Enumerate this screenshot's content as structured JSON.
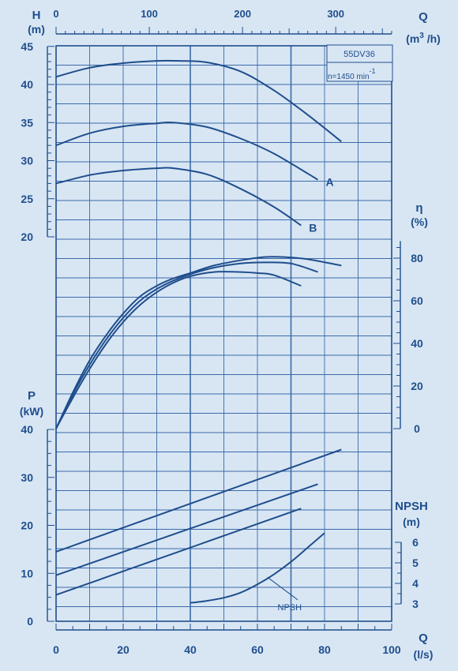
{
  "colors": {
    "background": "#d8e6f4",
    "ink": "#1f4e8c",
    "grid": "#3b6aa8"
  },
  "chart_data": {
    "type": "line",
    "model_label": "55DV36",
    "speed_label": "n=1450 min",
    "speed_exponent": "-1",
    "top_axis": {
      "label": "Q",
      "unit": "(m",
      "unit_sup": "3",
      "unit_tail": " /h)",
      "range": [
        0,
        360
      ],
      "ticks": [
        0,
        100,
        200,
        300
      ]
    },
    "bottom_axis": {
      "label": "Q",
      "unit": "(l/s)",
      "range": [
        0,
        100
      ],
      "ticks": [
        0,
        20,
        40,
        60,
        80,
        100
      ]
    },
    "head_axis": {
      "label": "H",
      "unit": "(m)",
      "range": [
        20,
        45
      ],
      "ticks": [
        20,
        25,
        30,
        35,
        40,
        45
      ]
    },
    "efficiency_axis": {
      "label": "η",
      "unit": "(%)",
      "range": [
        0,
        88
      ],
      "ticks": [
        0,
        20,
        40,
        60,
        80
      ]
    },
    "power_axis": {
      "label": "P",
      "unit": "(kW)",
      "range": [
        0,
        40
      ],
      "ticks": [
        0,
        10,
        20,
        30,
        40
      ]
    },
    "npsh_axis": {
      "label": "NPSH",
      "unit": "(m)",
      "range": [
        3,
        6
      ],
      "ticks": [
        3,
        4,
        5,
        6
      ]
    },
    "head_curves": [
      {
        "name": "",
        "x": [
          0,
          10,
          20,
          30,
          37,
          45,
          55,
          65,
          75,
          85
        ],
        "y": [
          41.0,
          42.2,
          42.8,
          43.1,
          43.1,
          42.9,
          41.7,
          39.2,
          36.0,
          32.5
        ]
      },
      {
        "name": "A",
        "x": [
          0,
          10,
          20,
          30,
          35,
          45,
          55,
          65,
          78
        ],
        "y": [
          32.0,
          33.6,
          34.5,
          34.9,
          35.0,
          34.4,
          32.9,
          30.9,
          27.5
        ]
      },
      {
        "name": "B",
        "x": [
          0,
          10,
          20,
          30,
          35,
          45,
          55,
          65,
          73
        ],
        "y": [
          27.0,
          28.1,
          28.7,
          29.0,
          29.0,
          28.2,
          26.3,
          23.9,
          21.5
        ]
      }
    ],
    "efficiency_curves": [
      {
        "x": [
          0,
          5,
          10,
          15,
          20,
          25,
          30,
          35,
          40,
          47,
          55,
          62,
          68,
          75,
          85
        ],
        "y": [
          0,
          17,
          32,
          44,
          54,
          62,
          67,
          70.5,
          73,
          76.5,
          79,
          80.5,
          80.5,
          79.5,
          76.5
        ]
      },
      {
        "x": [
          0,
          5,
          10,
          15,
          20,
          25,
          30,
          35,
          40,
          47,
          55,
          62,
          70,
          78
        ],
        "y": [
          0,
          16,
          30,
          42,
          52,
          60,
          65.5,
          69.5,
          72.5,
          75.5,
          77.5,
          78,
          77.5,
          73.5
        ]
      },
      {
        "x": [
          0,
          5,
          10,
          15,
          20,
          25,
          30,
          35,
          40,
          47,
          55,
          60,
          65,
          73
        ],
        "y": [
          0,
          14.5,
          28,
          40,
          50,
          58,
          64,
          68.5,
          71.5,
          73.5,
          73.5,
          73,
          72,
          67
        ]
      }
    ],
    "power_lines": [
      {
        "x": [
          0,
          85
        ],
        "y": [
          14.5,
          35.8
        ]
      },
      {
        "x": [
          0,
          78
        ],
        "y": [
          9.6,
          28.6
        ]
      },
      {
        "x": [
          0,
          73
        ],
        "y": [
          5.5,
          23.5
        ]
      }
    ],
    "npsh_curve": {
      "name": "NPSH",
      "x": [
        40,
        45,
        50,
        55,
        60,
        65,
        70,
        75,
        80
      ],
      "y": [
        3.05,
        3.15,
        3.3,
        3.55,
        3.95,
        4.45,
        5.05,
        5.75,
        6.45
      ]
    }
  }
}
